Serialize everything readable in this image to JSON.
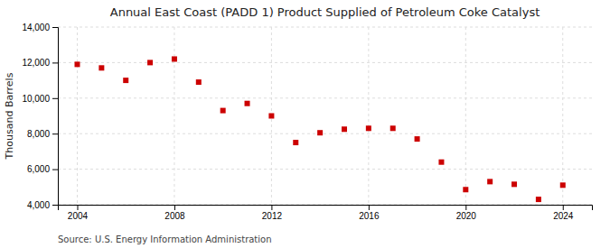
{
  "chart_data": {
    "type": "scatter",
    "title": "Annual East Coast (PADD 1) Product Supplied of Petroleum Coke Catalyst",
    "ylabel": "Thousand Barrels",
    "source": "Source: U.S. Energy Information Administration",
    "x": [
      2004,
      2005,
      2006,
      2007,
      2008,
      2009,
      2010,
      2011,
      2012,
      2013,
      2014,
      2015,
      2016,
      2017,
      2018,
      2019,
      2020,
      2021,
      2022,
      2023,
      2024
    ],
    "values": [
      11900,
      11700,
      11000,
      12000,
      12200,
      10900,
      9300,
      9700,
      9000,
      7500,
      8050,
      8250,
      8300,
      8300,
      7700,
      6400,
      4850,
      5300,
      5150,
      4300,
      5100
    ],
    "xlim": [
      2003.2,
      2025.2
    ],
    "xticks": [
      2004,
      2008,
      2012,
      2016,
      2020,
      2024
    ],
    "ylim": [
      4000,
      14000
    ],
    "yticks": [
      {
        "value": 4000,
        "label": "4,000"
      },
      {
        "value": 6000,
        "label": "6,000"
      },
      {
        "value": 8000,
        "label": "8,000"
      },
      {
        "value": 10000,
        "label": "10,000"
      },
      {
        "value": 12000,
        "label": "12,000"
      },
      {
        "value": 14000,
        "label": "14,000"
      }
    ],
    "color": "#cc0000",
    "marker": "square",
    "grid": true
  }
}
